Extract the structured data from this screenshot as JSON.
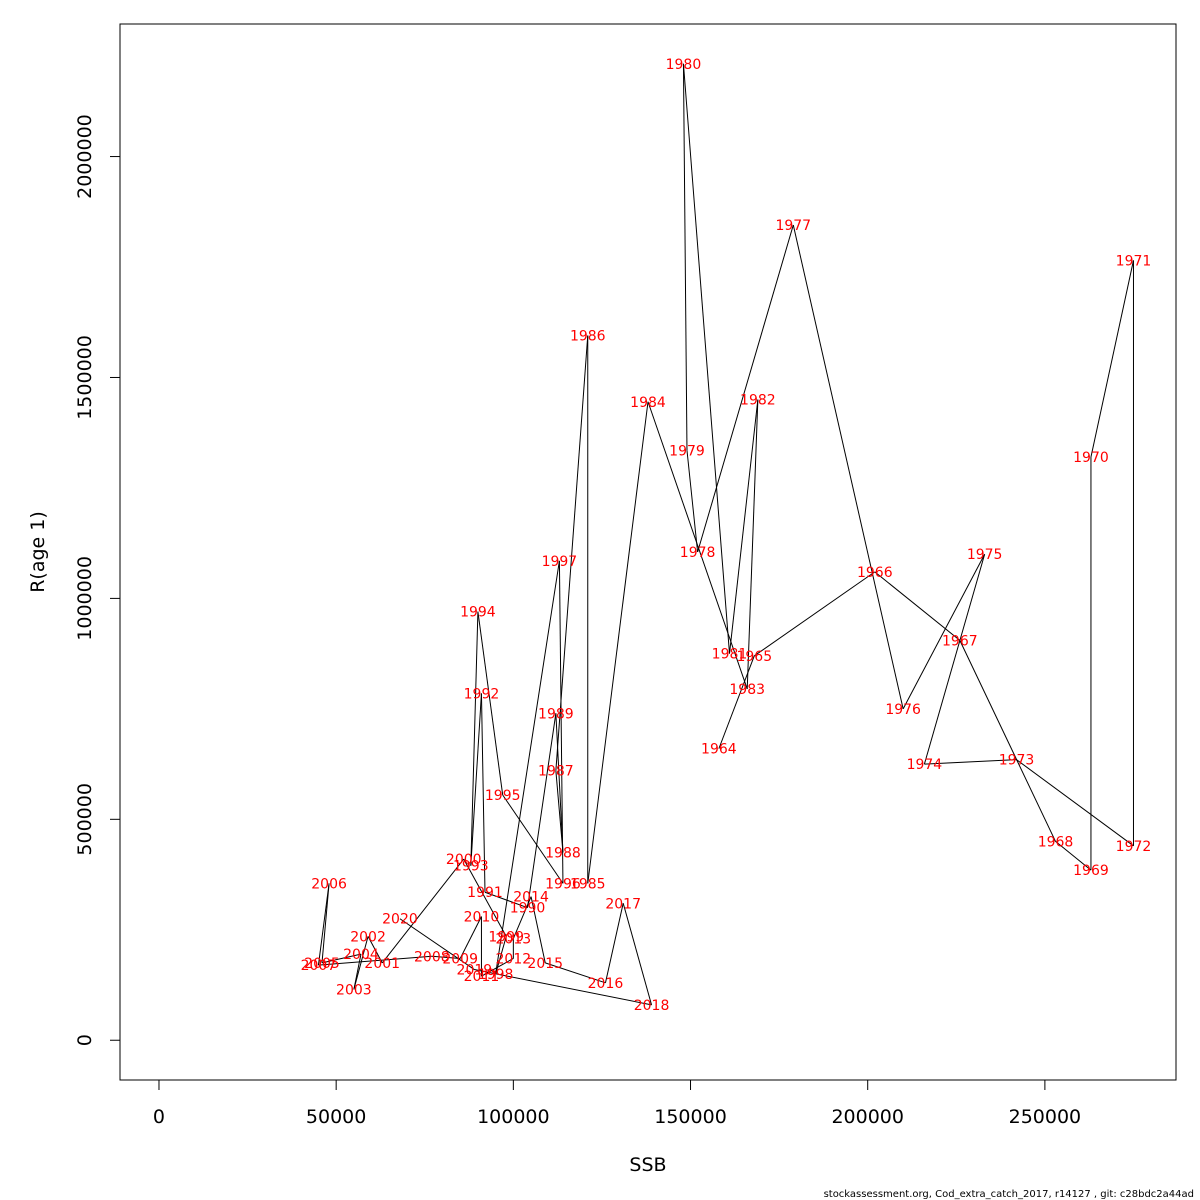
{
  "chart_data": {
    "type": "line",
    "xlabel": "SSB",
    "ylabel": "R(age 1)",
    "xlim": [
      -11000,
      287000
    ],
    "ylim": [
      -90000,
      2300000
    ],
    "x_ticks": [
      0,
      50000,
      100000,
      150000,
      200000,
      250000
    ],
    "y_ticks": [
      0,
      500000,
      1000000,
      1500000,
      2000000
    ],
    "x_tick_labels": [
      "0",
      "50000",
      "100000",
      "150000",
      "200000",
      "250000"
    ],
    "y_tick_labels": [
      "0",
      "500000",
      "1000000",
      "1500000",
      "2000000"
    ],
    "grid": false,
    "label_color": "#ff0000",
    "line_color": "#000000",
    "footer": "stockassessment.org, Cod_extra_catch_2017, r14127 , git: c28bdc2a44ad",
    "points": [
      {
        "year": "1964",
        "ssb": 158000,
        "rec": 660000
      },
      {
        "year": "1965",
        "ssb": 168000,
        "rec": 870000
      },
      {
        "year": "1966",
        "ssb": 202000,
        "rec": 1060000
      },
      {
        "year": "1967",
        "ssb": 226000,
        "rec": 905000
      },
      {
        "year": "1968",
        "ssb": 253000,
        "rec": 450000
      },
      {
        "year": "1969",
        "ssb": 263000,
        "rec": 385000
      },
      {
        "year": "1970",
        "ssb": 263000,
        "rec": 1320000
      },
      {
        "year": "1971",
        "ssb": 275000,
        "rec": 1765000
      },
      {
        "year": "1972",
        "ssb": 275000,
        "rec": 440000
      },
      {
        "year": "1973",
        "ssb": 242000,
        "rec": 635000
      },
      {
        "year": "1974",
        "ssb": 216000,
        "rec": 625000
      },
      {
        "year": "1975",
        "ssb": 233000,
        "rec": 1100000
      },
      {
        "year": "1976",
        "ssb": 210000,
        "rec": 750000
      },
      {
        "year": "1977",
        "ssb": 179000,
        "rec": 1845000
      },
      {
        "year": "1978",
        "ssb": 152000,
        "rec": 1105000
      },
      {
        "year": "1979",
        "ssb": 149000,
        "rec": 1335000
      },
      {
        "year": "1980",
        "ssb": 148000,
        "rec": 2210000
      },
      {
        "year": "1981",
        "ssb": 161000,
        "rec": 875000
      },
      {
        "year": "1982",
        "ssb": 169000,
        "rec": 1450000
      },
      {
        "year": "1983",
        "ssb": 166000,
        "rec": 795000
      },
      {
        "year": "1984",
        "ssb": 138000,
        "rec": 1445000
      },
      {
        "year": "1985",
        "ssb": 121000,
        "rec": 355000
      },
      {
        "year": "1986",
        "ssb": 121000,
        "rec": 1595000
      },
      {
        "year": "1987",
        "ssb": 112000,
        "rec": 610000
      },
      {
        "year": "1988",
        "ssb": 114000,
        "rec": 425000
      },
      {
        "year": "1989",
        "ssb": 112000,
        "rec": 740000
      },
      {
        "year": "1990",
        "ssb": 104000,
        "rec": 300000
      },
      {
        "year": "1991",
        "ssb": 92000,
        "rec": 335000
      },
      {
        "year": "1992",
        "ssb": 91000,
        "rec": 785000
      },
      {
        "year": "1993",
        "ssb": 88000,
        "rec": 395000
      },
      {
        "year": "1994",
        "ssb": 90000,
        "rec": 970000
      },
      {
        "year": "1995",
        "ssb": 97000,
        "rec": 555000
      },
      {
        "year": "1996",
        "ssb": 114000,
        "rec": 355000
      },
      {
        "year": "1997",
        "ssb": 113000,
        "rec": 1085000
      },
      {
        "year": "1998",
        "ssb": 95000,
        "rec": 150000
      },
      {
        "year": "1999",
        "ssb": 98000,
        "rec": 235000
      },
      {
        "year": "2000",
        "ssb": 86000,
        "rec": 410000
      },
      {
        "year": "2001",
        "ssb": 63000,
        "rec": 175000
      },
      {
        "year": "2002",
        "ssb": 59000,
        "rec": 235000
      },
      {
        "year": "2003",
        "ssb": 55000,
        "rec": 115000
      },
      {
        "year": "2004",
        "ssb": 57000,
        "rec": 195000
      },
      {
        "year": "2005",
        "ssb": 46000,
        "rec": 175000
      },
      {
        "year": "2006",
        "ssb": 48000,
        "rec": 355000
      },
      {
        "year": "2007",
        "ssb": 45000,
        "rec": 170000
      },
      {
        "year": "2008",
        "ssb": 77000,
        "rec": 190000
      },
      {
        "year": "2009",
        "ssb": 85000,
        "rec": 185000
      },
      {
        "year": "2010",
        "ssb": 91000,
        "rec": 280000
      },
      {
        "year": "2011",
        "ssb": 91000,
        "rec": 145000
      },
      {
        "year": "2012",
        "ssb": 100000,
        "rec": 185000
      },
      {
        "year": "2013",
        "ssb": 100000,
        "rec": 230000
      },
      {
        "year": "2014",
        "ssb": 105000,
        "rec": 325000
      },
      {
        "year": "2015",
        "ssb": 109000,
        "rec": 175000
      },
      {
        "year": "2016",
        "ssb": 126000,
        "rec": 130000
      },
      {
        "year": "2017",
        "ssb": 131000,
        "rec": 310000
      },
      {
        "year": "2018",
        "ssb": 139000,
        "rec": 80000
      },
      {
        "year": "2019",
        "ssb": 89000,
        "rec": 160000
      },
      {
        "year": "2020",
        "ssb": 68000,
        "rec": 275000
      }
    ]
  }
}
